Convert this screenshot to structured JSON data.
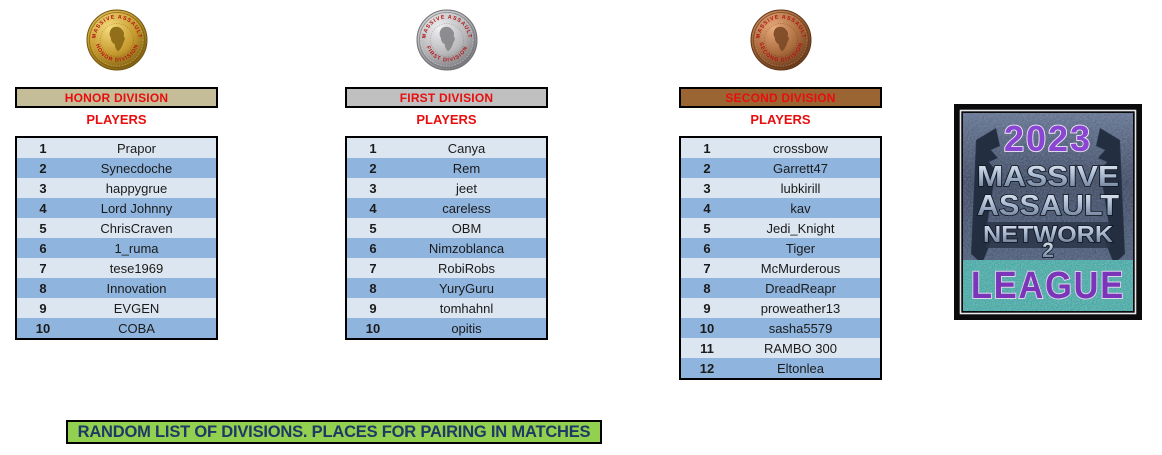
{
  "medals": {
    "rim_text_top": "MASSIVE ASSAULT",
    "rim_text_color": "#b31212"
  },
  "divisions": [
    {
      "name": "HONOR DIVISION",
      "players_label": "PLAYERS",
      "header_bg": "#c4bd97",
      "medal": {
        "metal": "gold",
        "rim_text_top": "MASSIVE ASSAULT",
        "rim_text_bottom": "HONOR DIVISION",
        "light": "#f6dc7e",
        "base": "#c69a2e",
        "dark": "#73560f",
        "land": "#8a6714"
      },
      "players": [
        "Prapor",
        "Synecdoche",
        "happygrue",
        "Lord Johnny",
        "ChrisCraven",
        "1_ruma",
        "tese1969",
        "Innovation",
        "EVGEN",
        "COBA"
      ]
    },
    {
      "name": "FIRST DIVISION",
      "players_label": "PLAYERS",
      "header_bg": "#c0c0c0",
      "medal": {
        "metal": "silver",
        "rim_text_top": "MASSIVE ASSAULT",
        "rim_text_bottom": "FIRST DIVISION",
        "light": "#f0f0f2",
        "base": "#b9b9bc",
        "dark": "#6f6f73",
        "land": "#85868a"
      },
      "players": [
        "Canya",
        "Rem",
        "jeet",
        "careless",
        "OBM",
        "Nimzoblanca",
        "RobiRobs",
        "YuryGuru",
        "tomhahnl",
        "opitis"
      ]
    },
    {
      "name": "SECOND DIVISION",
      "players_label": "PLAYERS",
      "header_bg": "#9a6433",
      "medal": {
        "metal": "bronze",
        "rim_text_top": "MASSIVE ASSAULT",
        "rim_text_bottom": "SECOND DIVISION",
        "light": "#e8ab7c",
        "base": "#a96a3c",
        "dark": "#5f3418",
        "land": "#7c4a26"
      },
      "players": [
        "crossbow",
        "Garrett47",
        "lubkirill",
        "kav",
        "Jedi_Knight",
        "Tiger",
        "McMurderous",
        "DreadReapr",
        "proweather13",
        "sasha5579",
        "RAMBO 300",
        "Eltonlea"
      ]
    }
  ],
  "logo": {
    "year": "2023",
    "title_lines": [
      "MASSIVE",
      "ASSAULT",
      "NETWORK"
    ],
    "number": "2",
    "league_label": "LEAGUE",
    "band_color": "#7cc4ba",
    "year_color": "#8a46d2",
    "league_color": "#7a35b8"
  },
  "footer": {
    "text": "RANDOM LIST OF DIVISIONS. PLACES FOR PAIRING IN MATCHES",
    "bg": "#92d050",
    "text_color": "#1f3864"
  },
  "colors": {
    "row_light": "#dce6f1",
    "row_dark": "#8fb4de",
    "label_red": "#e90e0e"
  }
}
